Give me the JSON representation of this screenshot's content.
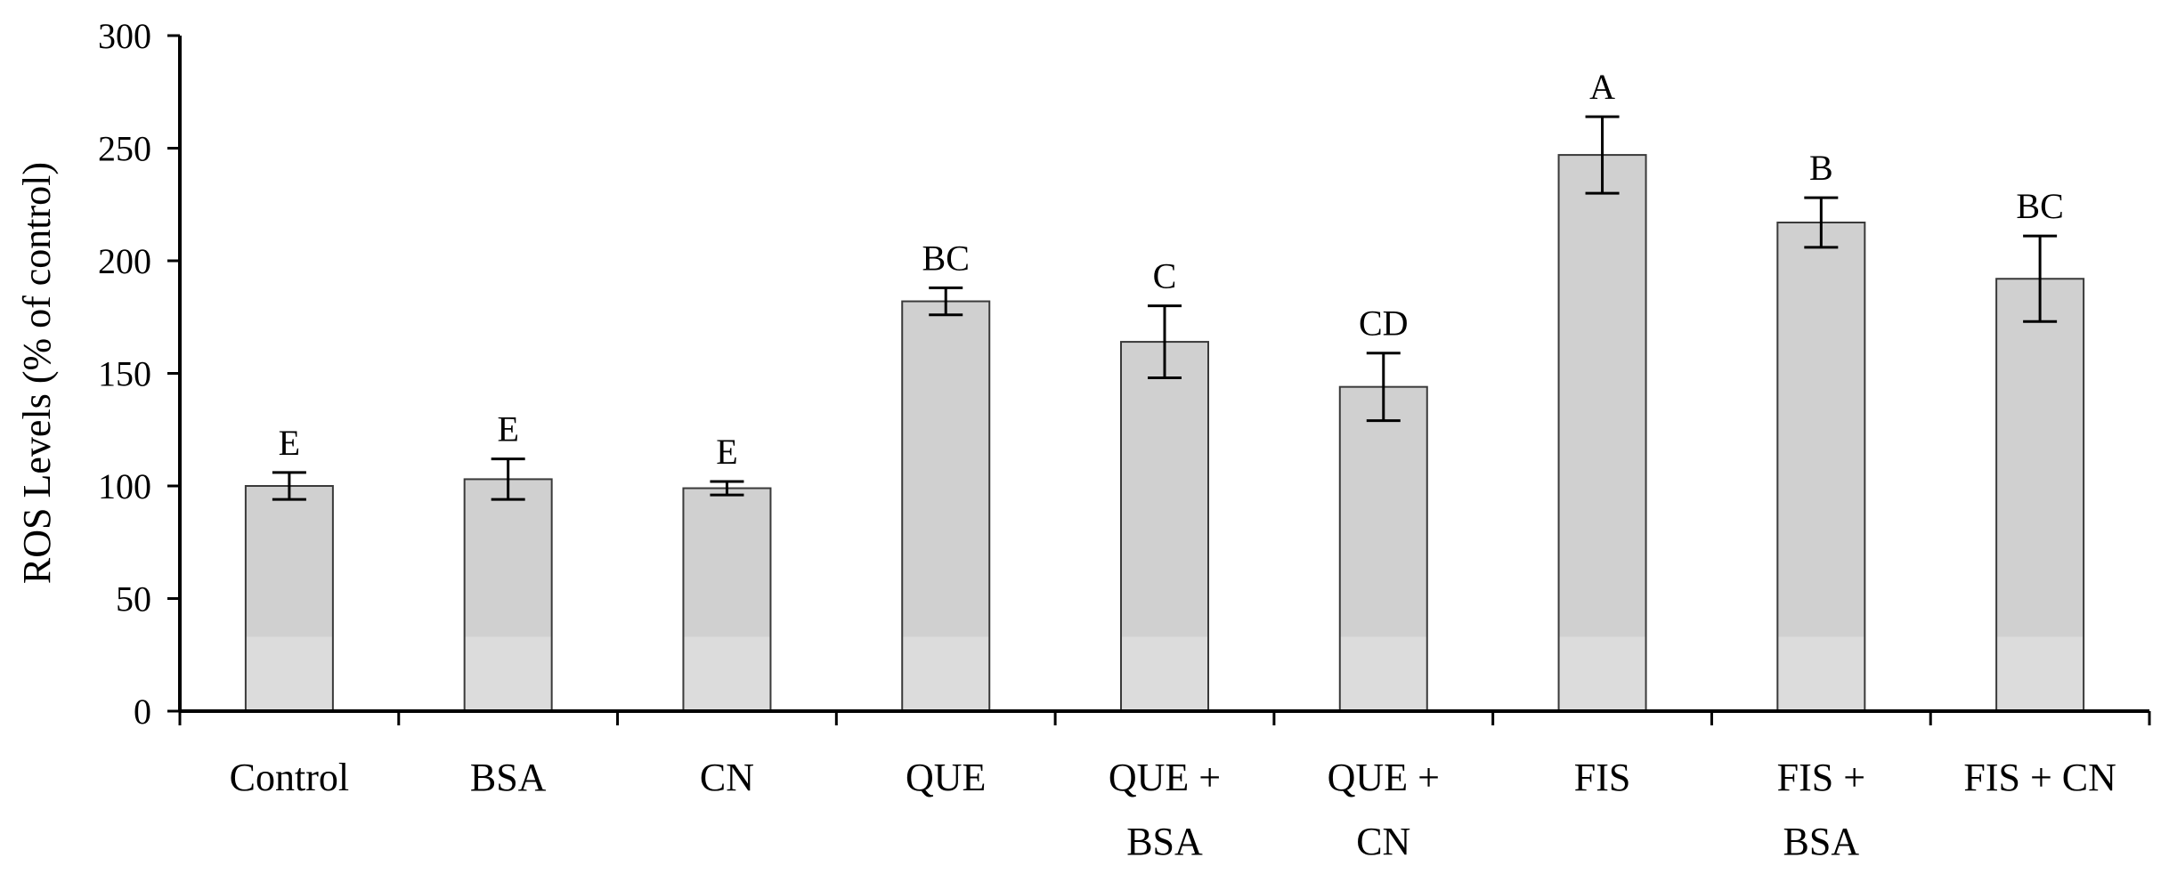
{
  "chart_data": {
    "type": "bar",
    "ylabel": "ROS Levels (% of control)",
    "xlabel": "",
    "ylim": [
      0,
      300
    ],
    "yticks": [
      0,
      50,
      100,
      150,
      200,
      250,
      300
    ],
    "categories": [
      [
        "Control"
      ],
      [
        "BSA"
      ],
      [
        "CN"
      ],
      [
        "QUE"
      ],
      [
        "QUE +",
        "BSA"
      ],
      [
        "QUE +",
        "CN"
      ],
      [
        "FIS"
      ],
      [
        "FIS +",
        "BSA"
      ],
      [
        "FIS + CN"
      ]
    ],
    "values": [
      100,
      103,
      99,
      182,
      164,
      144,
      247,
      217,
      192
    ],
    "errors": [
      6,
      9,
      3,
      6,
      16,
      15,
      17,
      11,
      19
    ],
    "significance_labels": [
      "E",
      "E",
      "E",
      "BC",
      "C",
      "CD",
      "A",
      "B",
      "BC"
    ],
    "colors": {
      "bar_fill": "#d0d0d0",
      "bar_lower_fill": "#dcdcdc",
      "bar_stroke": "#3a3a3a",
      "axis": "#000000"
    }
  }
}
